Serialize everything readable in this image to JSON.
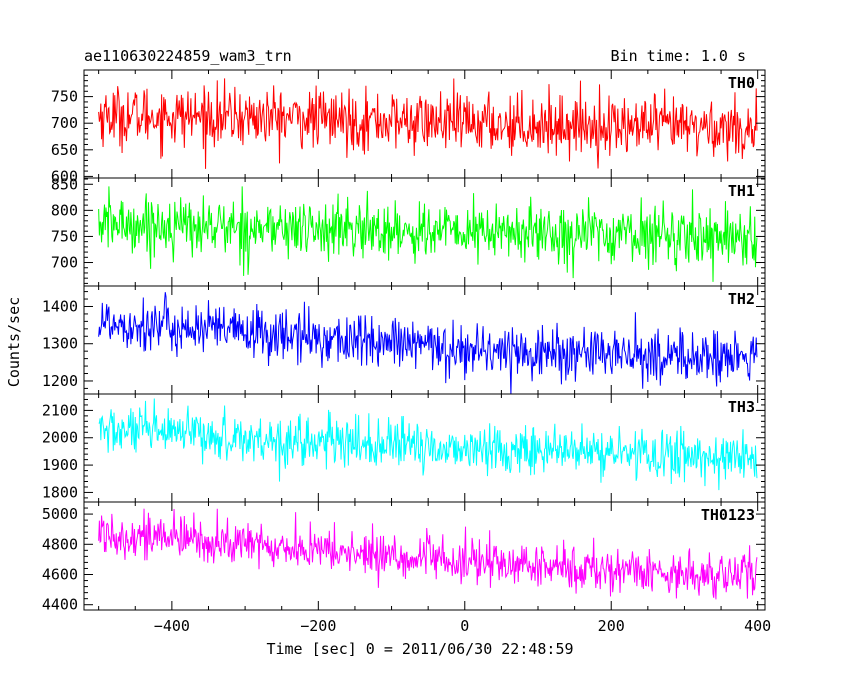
{
  "header": {
    "title": "ae110630224859_wam3_trn",
    "bin_time": "Bin time: 1.0 s"
  },
  "chart_data": {
    "type": "line",
    "xlabel": "Time [sec] 0 = 2011/06/30 22:48:59",
    "ylabel": "Counts/sec",
    "xlim": [
      -520,
      410
    ],
    "x_range": [
      -500,
      399
    ],
    "x_ticks": [
      -400,
      -200,
      0,
      200,
      400
    ],
    "x_tick_labels": [
      "−400",
      "−200",
      "0",
      "200",
      "400"
    ],
    "panels": [
      {
        "name": "TH0",
        "color": "#ff0000",
        "ylim": [
          597,
          800
        ],
        "y_ticks": [
          600,
          650,
          700,
          750
        ],
        "y_tick_labels": [
          "600",
          "650",
          "700",
          "750"
        ],
        "trend": [
          [
            -500,
            715
          ],
          [
            -250,
            710
          ],
          [
            0,
            700
          ],
          [
            200,
            695
          ],
          [
            399,
            690
          ]
        ],
        "noise_sd": 28
      },
      {
        "name": "TH1",
        "color": "#00ff00",
        "ylim": [
          655,
          862
        ],
        "y_ticks": [
          700,
          750,
          800,
          850
        ],
        "y_tick_labels": [
          "700",
          "750",
          "800",
          "850"
        ],
        "trend": [
          [
            -500,
            775
          ],
          [
            -250,
            765
          ],
          [
            0,
            758
          ],
          [
            200,
            755
          ],
          [
            399,
            750
          ]
        ],
        "noise_sd": 28
      },
      {
        "name": "TH2",
        "color": "#0000ff",
        "ylim": [
          1165,
          1455
        ],
        "y_ticks": [
          1200,
          1300,
          1400
        ],
        "y_tick_labels": [
          "1200",
          "1300",
          "1400"
        ],
        "trend": [
          [
            -500,
            1360
          ],
          [
            -300,
            1330
          ],
          [
            -100,
            1300
          ],
          [
            0,
            1285
          ],
          [
            200,
            1270
          ],
          [
            399,
            1260
          ]
        ],
        "noise_sd": 36
      },
      {
        "name": "TH3",
        "color": "#00ffff",
        "ylim": [
          1765,
          2160
        ],
        "y_ticks": [
          1800,
          1900,
          2000,
          2100
        ],
        "y_tick_labels": [
          "1800",
          "1900",
          "2000",
          "2100"
        ],
        "trend": [
          [
            -500,
            2030
          ],
          [
            -250,
            1990
          ],
          [
            0,
            1960
          ],
          [
            200,
            1945
          ],
          [
            399,
            1925
          ]
        ],
        "noise_sd": 45
      },
      {
        "name": "TH0123",
        "color": "#ff00ff",
        "ylim": [
          4365,
          5080
        ],
        "y_ticks": [
          4400,
          4600,
          4800,
          5000
        ],
        "y_tick_labels": [
          "4400",
          "4600",
          "4800",
          "5000"
        ],
        "trend": [
          [
            -500,
            4880
          ],
          [
            -300,
            4800
          ],
          [
            -100,
            4720
          ],
          [
            0,
            4680
          ],
          [
            200,
            4630
          ],
          [
            399,
            4590
          ]
        ],
        "noise_sd": 75
      }
    ]
  }
}
